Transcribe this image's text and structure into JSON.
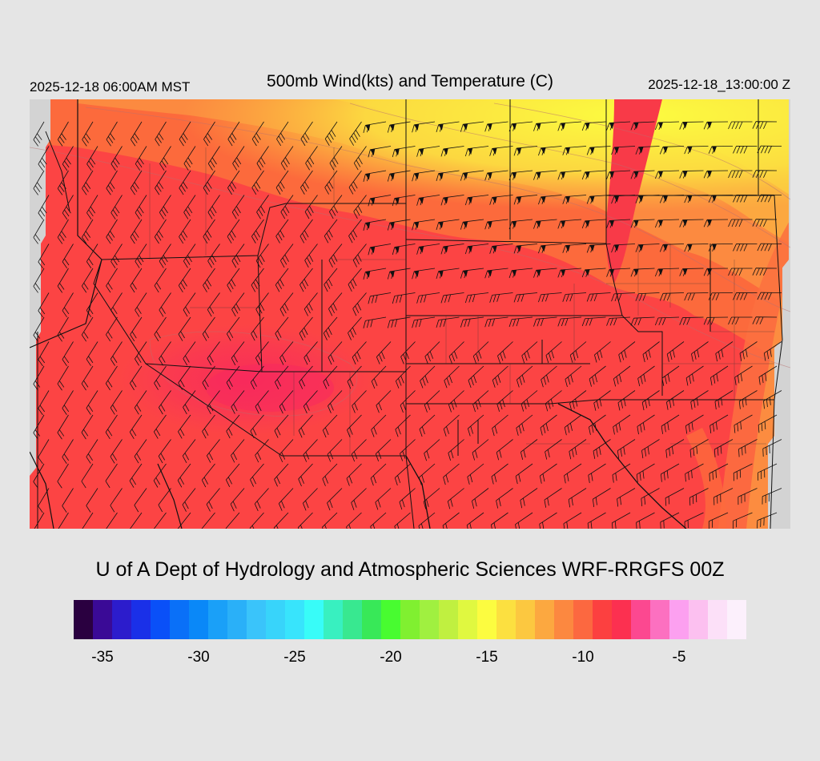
{
  "header": {
    "valid_local": "2025-12-18 06:00AM MST",
    "title": "500mb Wind(kts) and Temperature (C)",
    "valid_utc": "2025-12-18_13:00:00 Z"
  },
  "footer": {
    "credit": "U of A Dept of Hydrology and Atmospheric Sciences WRF-RRGFS 00Z"
  },
  "colorbar": {
    "colors": [
      "#2a0040",
      "#3a0a96",
      "#2c1ccc",
      "#1a30e8",
      "#0a50f8",
      "#0a70f8",
      "#0a88f8",
      "#1aa0f8",
      "#2ab0f8",
      "#3ac4fa",
      "#38d4fa",
      "#38e4fc",
      "#38fcf8",
      "#38f0c0",
      "#38e890",
      "#38e858",
      "#48fc30",
      "#80f030",
      "#a0f040",
      "#c0f040",
      "#e0f840",
      "#fcfc40",
      "#fce040",
      "#fcc840",
      "#fca840",
      "#fc8840",
      "#fc6840",
      "#fc4040",
      "#fc3050",
      "#fc4890",
      "#fc70c0",
      "#fca0f0",
      "#fcc0f0",
      "#fce0f8",
      "#fcf0fc"
    ],
    "ticks": [
      {
        "value": -35,
        "label": "-35"
      },
      {
        "value": -30,
        "label": "-30"
      },
      {
        "value": -25,
        "label": "-25"
      },
      {
        "value": -20,
        "label": "-20"
      },
      {
        "value": -15,
        "label": "-15"
      },
      {
        "value": -10,
        "label": "-10"
      },
      {
        "value": -5,
        "label": "-5"
      }
    ],
    "min": -36.5,
    "max": -1.5
  }
}
